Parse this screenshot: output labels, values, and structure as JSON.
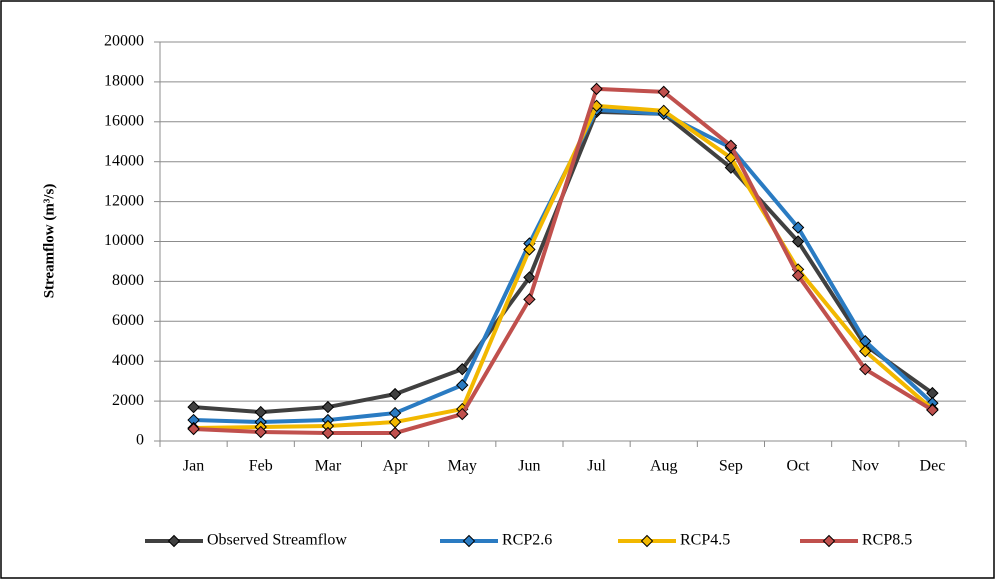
{
  "chart_data": {
    "type": "line",
    "y_label": "Streamflow (m³/s)",
    "categories": [
      "Jan",
      "Feb",
      "Mar",
      "Apr",
      "May",
      "Jun",
      "Jul",
      "Aug",
      "Sep",
      "Oct",
      "Nov",
      "Dec"
    ],
    "series": [
      {
        "name": "Observed Streamflow",
        "color": "#404040",
        "values": [
          1700,
          1450,
          1700,
          2350,
          3600,
          8200,
          16500,
          16400,
          13700,
          10000,
          4800,
          2400
        ]
      },
      {
        "name": "RCP2.6",
        "color": "#2a7bc2",
        "values": [
          1050,
          950,
          1050,
          1400,
          2800,
          9900,
          16600,
          16400,
          14700,
          10700,
          5000,
          1900
        ]
      },
      {
        "name": "RCP4.5",
        "color": "#f2b800",
        "values": [
          650,
          700,
          750,
          950,
          1600,
          9600,
          16800,
          16550,
          14200,
          8600,
          4500,
          1600
        ]
      },
      {
        "name": "RCP8.5",
        "color": "#c0504d",
        "values": [
          600,
          450,
          400,
          400,
          1350,
          7100,
          17650,
          17500,
          14800,
          8300,
          3600,
          1550
        ]
      }
    ],
    "ylim": [
      0,
      20000
    ],
    "yticks": [
      0,
      2000,
      4000,
      6000,
      8000,
      10000,
      12000,
      14000,
      16000,
      18000,
      20000
    ],
    "grid": true,
    "legend": "bottom"
  }
}
